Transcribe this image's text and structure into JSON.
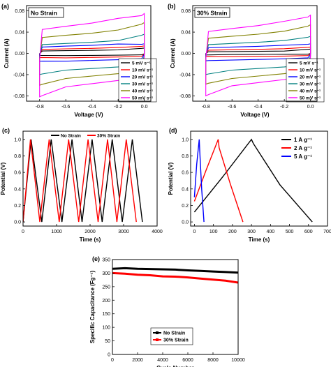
{
  "chart_data": [
    {
      "id": "a",
      "type": "line",
      "panel_label": "(a)",
      "inset_label": "No Strain",
      "xlabel": "Voltage (V)",
      "ylabel": "Current (A)",
      "xlim": [
        -0.9,
        0.05
      ],
      "ylim": [
        -0.09,
        0.09
      ],
      "xticks": [
        -0.8,
        -0.6,
        -0.4,
        -0.2,
        0.0
      ],
      "xtick_labels": [
        "-0.8",
        "-0.6",
        "-0.4",
        "-0.2",
        "0.0"
      ],
      "yticks": [
        -0.08,
        -0.04,
        0.0,
        0.04,
        0.08
      ],
      "ytick_labels": [
        "-0.08",
        "-0.04",
        "0.00",
        "0.04",
        "0.08"
      ],
      "legend_position": "bottom-right",
      "cv_loops": [
        {
          "name": "5 mV s⁻¹",
          "color": "#000000",
          "upper": 0.006,
          "lower": -0.004,
          "peak": 0.01,
          "trough": -0.004
        },
        {
          "name": "10 mV s⁻¹",
          "color": "#ff0000",
          "upper": 0.01,
          "lower": -0.008,
          "peak": 0.014,
          "trough": -0.008
        },
        {
          "name": "20 mV s⁻¹",
          "color": "#0000ff",
          "upper": 0.016,
          "lower": -0.014,
          "peak": 0.018,
          "trough": -0.015
        },
        {
          "name": "30 mV s⁻¹",
          "color": "#008080",
          "upper": 0.022,
          "lower": -0.03,
          "peak": 0.036,
          "trough": -0.04
        },
        {
          "name": "40 mV s⁻¹",
          "color": "#808000",
          "upper": 0.04,
          "lower": -0.045,
          "peak": 0.058,
          "trough": -0.06
        },
        {
          "name": "50 mV s⁻¹",
          "color": "#ff00ff",
          "upper": 0.06,
          "lower": -0.06,
          "peak": 0.075,
          "trough": -0.082
        }
      ]
    },
    {
      "id": "b",
      "type": "line",
      "panel_label": "(b)",
      "inset_label": "30% Strain",
      "xlabel": "Voltage (V)",
      "ylabel": "Current (A)",
      "xlim": [
        -0.9,
        0.05
      ],
      "ylim": [
        -0.09,
        0.09
      ],
      "xticks": [
        -0.8,
        -0.6,
        -0.4,
        -0.2,
        0.0
      ],
      "xtick_labels": [
        "-0.8",
        "-0.6",
        "-0.4",
        "-0.2",
        "0.0"
      ],
      "yticks": [
        -0.08,
        -0.04,
        0.0,
        0.04,
        0.08
      ],
      "ytick_labels": [
        "-0.08",
        "-0.04",
        "0.00",
        "0.04",
        "0.08"
      ],
      "legend_position": "bottom-right",
      "cv_loops": [
        {
          "name": "5 mV s⁻¹",
          "color": "#000000",
          "upper": 0.004,
          "lower": -0.002,
          "peak": 0.008,
          "trough": -0.003
        },
        {
          "name": "10 mV s⁻¹",
          "color": "#ff0000",
          "upper": 0.008,
          "lower": -0.006,
          "peak": 0.012,
          "trough": -0.006
        },
        {
          "name": "20 mV s⁻¹",
          "color": "#0000ff",
          "upper": 0.014,
          "lower": -0.012,
          "peak": 0.018,
          "trough": -0.014
        },
        {
          "name": "30 mV s⁻¹",
          "color": "#008080",
          "upper": 0.022,
          "lower": -0.03,
          "peak": 0.032,
          "trough": -0.04
        },
        {
          "name": "40 mV s⁻¹",
          "color": "#808000",
          "upper": 0.038,
          "lower": -0.045,
          "peak": 0.054,
          "trough": -0.058
        },
        {
          "name": "50 mV s⁻¹",
          "color": "#ff00ff",
          "upper": 0.055,
          "lower": -0.058,
          "peak": 0.072,
          "trough": -0.08
        }
      ]
    },
    {
      "id": "c",
      "type": "line",
      "panel_label": "(c)",
      "xlabel": "Time (s)",
      "ylabel": "Potential (V)",
      "xlim": [
        0,
        4000
      ],
      "ylim": [
        -0.05,
        1.1
      ],
      "xticks": [
        0,
        1000,
        2000,
        3000,
        4000
      ],
      "xtick_labels": [
        "0",
        "1000",
        "2000",
        "3000",
        "4000"
      ],
      "yticks": [
        0.0,
        0.2,
        0.4,
        0.6,
        0.8,
        1.0
      ],
      "ytick_labels": [
        "0.0",
        "0.2",
        "0.4",
        "0.6",
        "0.8",
        "1.0"
      ],
      "legend_position": "top",
      "series": [
        {
          "name": "No Strain",
          "color": "#000000",
          "x": [
            0,
            240,
            560,
            840,
            1160,
            1460,
            1760,
            2060,
            2360,
            2660,
            2960,
            3260,
            3560
          ],
          "y": [
            0.0,
            1.0,
            0.0,
            1.0,
            0.0,
            1.0,
            0.0,
            1.0,
            0.0,
            1.0,
            0.0,
            1.0,
            0.0
          ]
        },
        {
          "name": "30% Strain",
          "color": "#ff0000",
          "x": [
            0,
            220,
            500,
            780,
            1080,
            1360,
            1660,
            1940,
            2240,
            2520,
            2800,
            3080,
            3380
          ],
          "y": [
            0.0,
            1.0,
            0.0,
            1.0,
            0.0,
            1.0,
            0.0,
            1.0,
            0.0,
            1.0,
            0.0,
            1.0,
            0.0
          ]
        }
      ]
    },
    {
      "id": "d",
      "type": "line",
      "panel_label": "(d)",
      "xlabel": "Time (s)",
      "ylabel": "Potential (V)",
      "xlim": [
        -20,
        700
      ],
      "ylim": [
        -0.05,
        1.1
      ],
      "xticks": [
        0,
        100,
        200,
        300,
        400,
        500,
        600,
        700
      ],
      "xtick_labels": [
        "0",
        "100",
        "200",
        "300",
        "400",
        "500",
        "600",
        "700"
      ],
      "yticks": [
        0.0,
        0.2,
        0.4,
        0.6,
        0.8,
        1.0
      ],
      "ytick_labels": [
        "0.0",
        "0.2",
        "0.4",
        "0.6",
        "0.8",
        "1.0"
      ],
      "legend_position": "top-right",
      "series": [
        {
          "name": "1 A g⁻¹",
          "color": "#000000",
          "x": [
            0,
            150,
            300,
            310,
            450,
            620
          ],
          "y": [
            0.12,
            0.55,
            1.0,
            0.95,
            0.45,
            0.0
          ]
        },
        {
          "name": "2 A g⁻¹",
          "color": "#ff0000",
          "x": [
            0,
            60,
            125,
            130,
            190,
            255
          ],
          "y": [
            0.25,
            0.62,
            1.0,
            0.9,
            0.45,
            0.0
          ]
        },
        {
          "name": "5 A g⁻¹",
          "color": "#0000ff",
          "x": [
            0,
            12,
            25,
            28,
            38,
            50
          ],
          "y": [
            0.3,
            0.7,
            1.0,
            0.85,
            0.4,
            0.0
          ]
        }
      ]
    },
    {
      "id": "e",
      "type": "line",
      "panel_label": "(e)",
      "xlabel": "Cycle Number",
      "ylabel": "Specific Capacitance (Fg⁻¹)",
      "xlim": [
        0,
        10000
      ],
      "ylim": [
        0,
        350
      ],
      "xticks": [
        0,
        2000,
        4000,
        6000,
        8000,
        10000
      ],
      "xtick_labels": [
        "0",
        "2000",
        "4000",
        "6000",
        "8000",
        "10000"
      ],
      "yticks": [
        0,
        50,
        100,
        150,
        200,
        250,
        300,
        350
      ],
      "ytick_labels": [
        "0",
        "50",
        "100",
        "150",
        "200",
        "250",
        "300",
        "350"
      ],
      "legend_position": "bottom-center",
      "series": [
        {
          "name": "No Strain",
          "color": "#000000",
          "x": [
            0,
            1000,
            2000,
            3000,
            4000,
            5000,
            6000,
            7000,
            8000,
            9000,
            10000
          ],
          "y": [
            316,
            318,
            316,
            315,
            314,
            313,
            310,
            308,
            306,
            304,
            302
          ]
        },
        {
          "name": "30% Strain",
          "color": "#ff0000",
          "x": [
            0,
            1000,
            2000,
            3000,
            4000,
            5000,
            6000,
            7000,
            8000,
            9000,
            10000
          ],
          "y": [
            300,
            298,
            294,
            292,
            288,
            287,
            284,
            280,
            276,
            272,
            265
          ]
        }
      ]
    }
  ]
}
